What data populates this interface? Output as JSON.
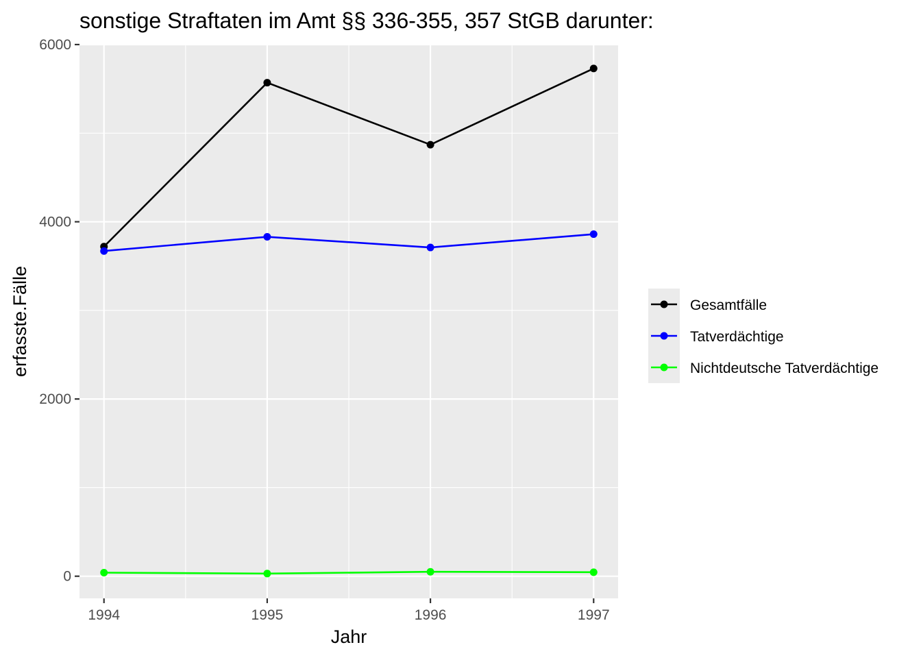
{
  "chart_data": {
    "type": "line",
    "title": "sonstige Straftaten im Amt §§ 336-355, 357 StGB darunter:",
    "xlabel": "Jahr",
    "ylabel": "erfasste.Fälle",
    "x": [
      1994,
      1995,
      1996,
      1997
    ],
    "x_ticks": [
      "1994",
      "1995",
      "1996",
      "1997"
    ],
    "y_ticks": [
      "0",
      "2000",
      "4000",
      "6000"
    ],
    "ylim": [
      -250,
      6000
    ],
    "xlim": [
      1993.85,
      1997.15
    ],
    "grid": true,
    "legend_position": "right",
    "series": [
      {
        "name": "Gesamtfälle",
        "color": "#000000",
        "values": [
          3720,
          5570,
          4870,
          5730
        ]
      },
      {
        "name": "Tatverdächtige",
        "color": "#0000ff",
        "values": [
          3670,
          3830,
          3710,
          3860
        ]
      },
      {
        "name": "Nichtdeutsche Tatverdächtige",
        "color": "#00ff00",
        "values": [
          40,
          30,
          50,
          45
        ]
      }
    ]
  }
}
